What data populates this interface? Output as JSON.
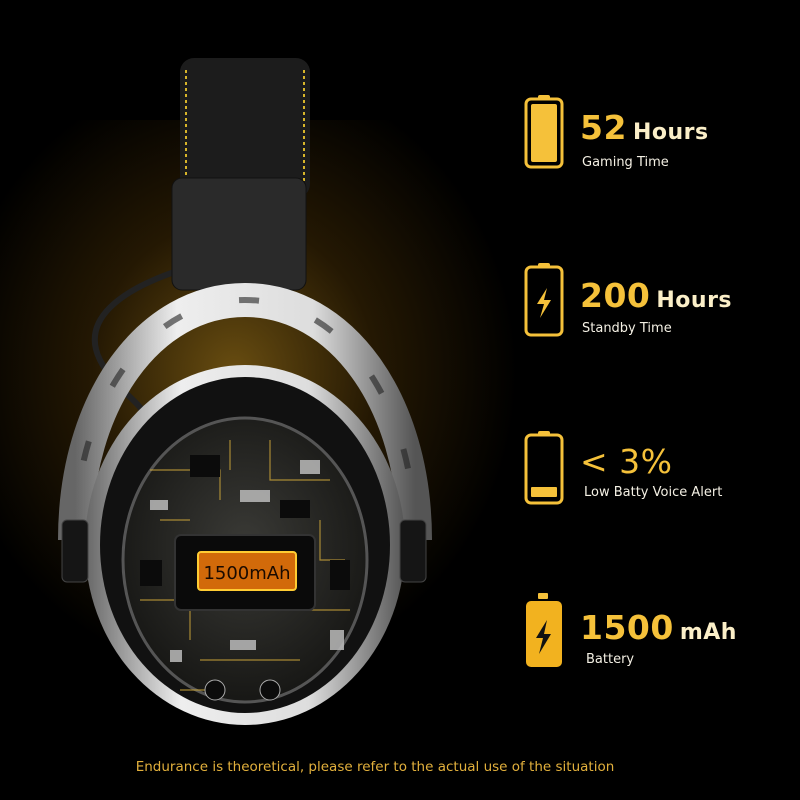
{
  "colors": {
    "accent": "#f5c13a",
    "unit_text": "#fbefc8",
    "label_text": "#f4f0e4",
    "background": "#000000"
  },
  "product": {
    "battery_label": "1500mAh"
  },
  "features": [
    {
      "icon": "battery-full-icon",
      "value": "52",
      "unit": "Hours",
      "label": "Gaming Time"
    },
    {
      "icon": "battery-charging-icon",
      "value": "200",
      "unit": "Hours",
      "label": "Standby Time"
    },
    {
      "icon": "battery-low-icon",
      "value": "< 3%",
      "unit": "",
      "label": "Low Batty Voice Alert"
    },
    {
      "icon": "battery-cell-icon",
      "value": "1500",
      "unit": "mAh",
      "label": "Battery"
    }
  ],
  "footer": "Endurance is theoretical, please refer to the actual use of the situation"
}
